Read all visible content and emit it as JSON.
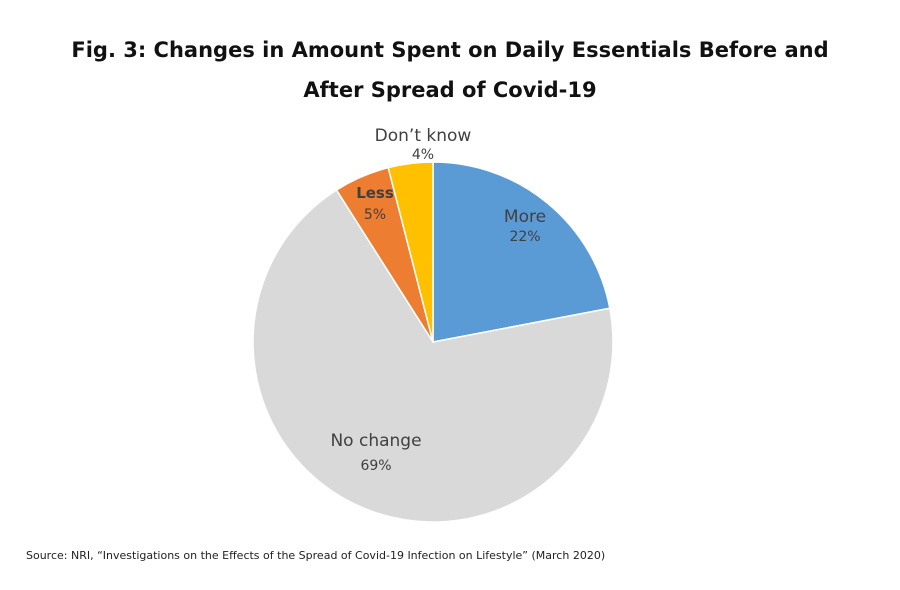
{
  "chart_data": {
    "type": "pie",
    "title_lines": [
      "Fig. 3: Changes in Amount Spent on Daily Essentials Before and",
      "After Spread of Covid-19"
    ],
    "slices": [
      {
        "label": "More",
        "value": 22,
        "value_label": "22%",
        "color": "#5b9bd5"
      },
      {
        "label": "No change",
        "value": 69,
        "value_label": "69%",
        "color": "#d9d9d9"
      },
      {
        "label": "Less",
        "value": 5,
        "value_label": "5%",
        "color": "#ed7d31"
      },
      {
        "label": "Don’t know",
        "value": 4,
        "value_label": "4%",
        "color": "#ffc000"
      }
    ],
    "start": "12 o'clock",
    "direction": "clockwise",
    "legend": "none",
    "source": "Source: NRI, “Investigations on the Effects of the Spread of Covid-19 Infection on Lifestyle” (March 2020)"
  }
}
